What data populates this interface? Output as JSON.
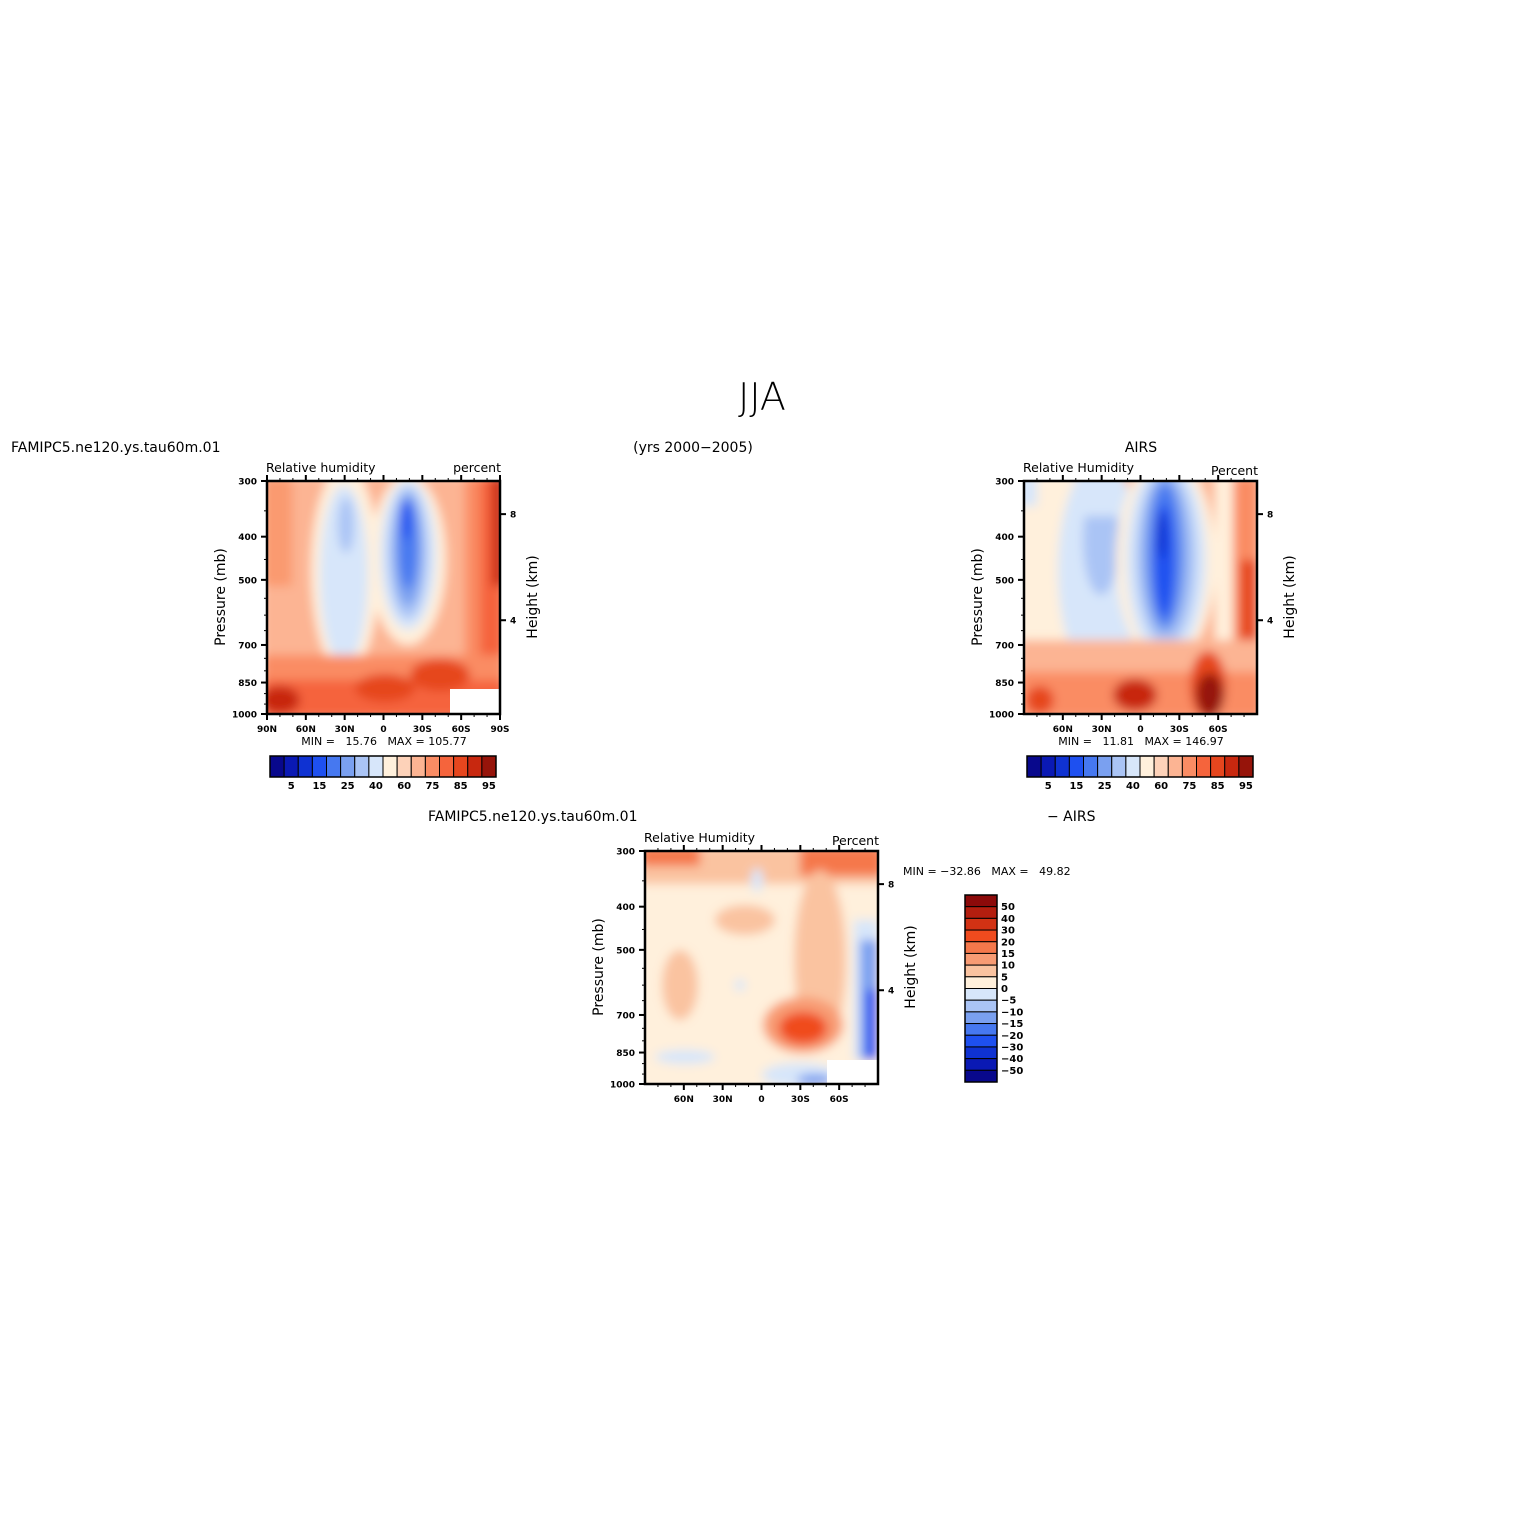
{
  "page": {
    "title": "JJA",
    "years_label": "(yrs 2000−2005)",
    "airs_label": "AIRS",
    "diff_label": "− AIRS"
  },
  "chart_data": [
    {
      "type": "heatmap",
      "case_label": "FAMIPC5.ne120.ys.tau60m.01",
      "title": "Relative humidity",
      "units": "percent",
      "ylabel": "Pressure (mb)",
      "ylabel2": "Height (km)",
      "x_ticks": [
        "90N",
        "60N",
        "30N",
        "0",
        "30S",
        "60S",
        "90S"
      ],
      "y_ticks": [
        "300",
        "400",
        "500",
        "700",
        "850",
        "1000"
      ],
      "y2_ticks": [
        "8",
        "4"
      ],
      "stats": "MIN =   15.76   MAX = 105.77",
      "colorbar_labels": [
        "5",
        "15",
        "25",
        "40",
        "60",
        "75",
        "85",
        "95"
      ],
      "min": 15.76,
      "max": 105.77
    },
    {
      "type": "heatmap",
      "case_label": "AIRS",
      "title": "Relative Humidity",
      "units": "Percent",
      "ylabel": "Pressure (mb)",
      "ylabel2": "Height (km)",
      "x_ticks": [
        "60N",
        "30N",
        "0",
        "30S",
        "60S"
      ],
      "y_ticks": [
        "300",
        "400",
        "500",
        "700",
        "850",
        "1000"
      ],
      "y2_ticks": [
        "8",
        "4"
      ],
      "stats": "MIN =   11.81   MAX = 146.97",
      "colorbar_labels": [
        "5",
        "15",
        "25",
        "40",
        "60",
        "75",
        "85",
        "95"
      ],
      "min": 11.81,
      "max": 146.97
    },
    {
      "type": "heatmap",
      "case_label": "FAMIPC5.ne120.ys.tau60m.01",
      "title": "Relative Humidity",
      "units": "Percent",
      "ylabel": "Pressure (mb)",
      "ylabel2": "Height (km)",
      "x_ticks": [
        "60N",
        "30N",
        "0",
        "30S",
        "60S"
      ],
      "y_ticks": [
        "300",
        "400",
        "500",
        "700",
        "850",
        "1000"
      ],
      "y2_ticks": [
        "8",
        "4"
      ],
      "stats": "MIN = −32.86   MAX =   49.82",
      "colorbar_labels": [
        "50",
        "40",
        "30",
        "20",
        "15",
        "10",
        "5",
        "0",
        "−5",
        "−10",
        "−15",
        "−20",
        "−30",
        "−40",
        "−50"
      ],
      "min": -32.86,
      "max": 49.82
    }
  ],
  "colors": {
    "abs_scale": [
      "#08088c",
      "#0a19b4",
      "#0f32d2",
      "#1e50f0",
      "#4678f0",
      "#7aa0f0",
      "#aac4f5",
      "#d7e6fa",
      "#fff0dc",
      "#fdd2b9",
      "#fcb493",
      "#fa8c64",
      "#f5643c",
      "#e6461e",
      "#c8280f",
      "#96140a"
    ],
    "diff_scale": [
      "#8c0a0a",
      "#b41e0f",
      "#d23214",
      "#f04b1e",
      "#f5784b",
      "#f89b73",
      "#fac3a0",
      "#fff0dc",
      "#d7e6fa",
      "#aac4f5",
      "#7aa0f0",
      "#4678f0",
      "#1e50f0",
      "#0f32d2",
      "#0a19b4",
      "#08088c"
    ]
  }
}
